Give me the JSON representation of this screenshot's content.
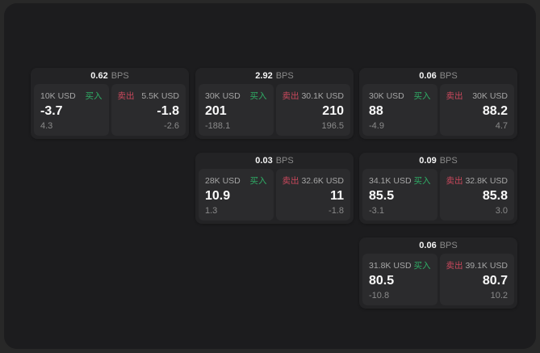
{
  "labels": {
    "bps_unit": "BPS",
    "buy": "买入",
    "sell": "卖出"
  },
  "colors": {
    "window_bg": "#1c1c1e",
    "card_bg": "#232325",
    "panel_bg": "#2b2b2d",
    "buy_green": "#2fae66",
    "sell_red": "#c9485c"
  },
  "cards": [
    {
      "bps": "0.62",
      "buy": {
        "notional": "10K USD",
        "price": "-3.7",
        "sub": "4.3"
      },
      "sell": {
        "notional": "5.5K USD",
        "price": "-1.8",
        "sub": "-2.6"
      }
    },
    {
      "bps": "2.92",
      "buy": {
        "notional": "30K USD",
        "price": "201",
        "sub": "-188.1"
      },
      "sell": {
        "notional": "30.1K USD",
        "price": "210",
        "sub": "196.5"
      }
    },
    {
      "bps": "0.06",
      "buy": {
        "notional": "30K USD",
        "price": "88",
        "sub": "-4.9"
      },
      "sell": {
        "notional": "30K USD",
        "price": "88.2",
        "sub": "4.7"
      }
    },
    {
      "bps": "0.03",
      "buy": {
        "notional": "28K USD",
        "price": "10.9",
        "sub": "1.3"
      },
      "sell": {
        "notional": "32.6K USD",
        "price": "11",
        "sub": "-1.8"
      }
    },
    {
      "bps": "0.09",
      "buy": {
        "notional": "34.1K USD",
        "price": "85.5",
        "sub": "-3.1"
      },
      "sell": {
        "notional": "32.8K USD",
        "price": "85.8",
        "sub": "3.0"
      }
    },
    {
      "bps": "0.06",
      "buy": {
        "notional": "31.8K USD",
        "price": "80.5",
        "sub": "-10.8"
      },
      "sell": {
        "notional": "39.1K USD",
        "price": "80.7",
        "sub": "10.2"
      }
    }
  ]
}
